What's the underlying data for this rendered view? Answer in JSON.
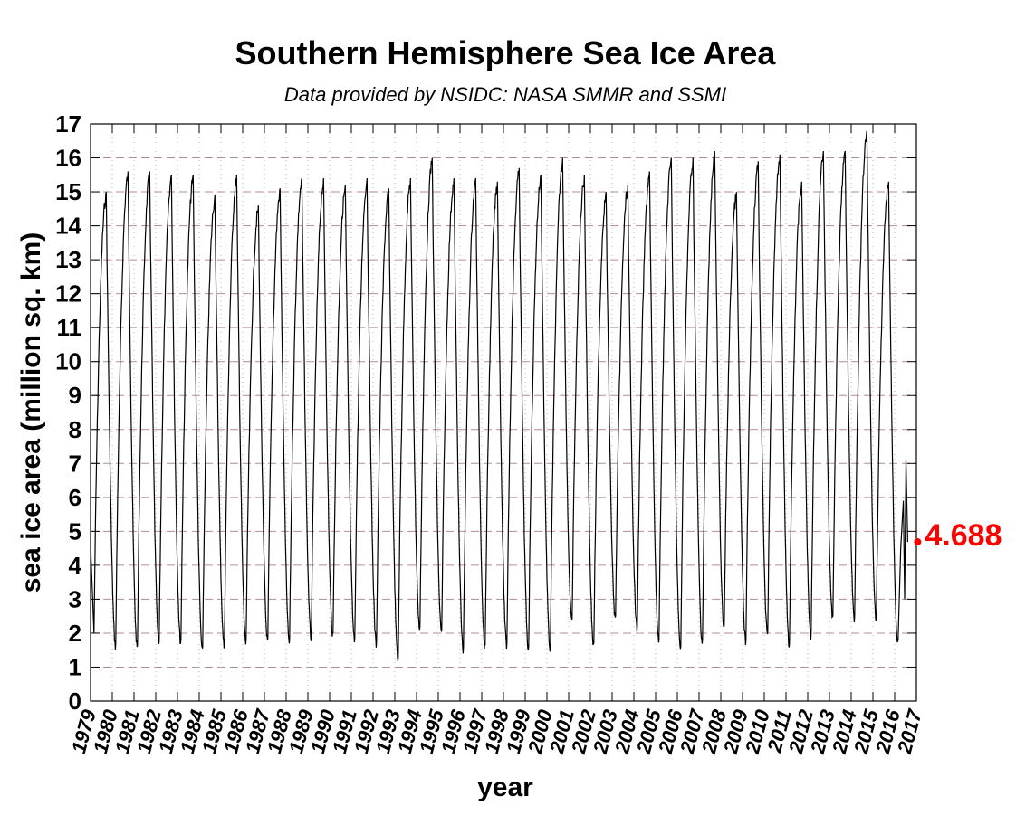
{
  "chart_data": {
    "type": "line",
    "title": "Southern Hemisphere Sea Ice Area",
    "subtitle": "Data provided by NSIDC: NASA SMMR and SSMI",
    "xlabel": "year",
    "ylabel": "sea ice area (million sq. km)",
    "xlim": [
      1979,
      2017
    ],
    "ylim": [
      0,
      17
    ],
    "x_ticks": [
      "1979",
      "1980",
      "1981",
      "1982",
      "1983",
      "1984",
      "1985",
      "1986",
      "1987",
      "1988",
      "1989",
      "1990",
      "1991",
      "1992",
      "1993",
      "1994",
      "1995",
      "1996",
      "1997",
      "1998",
      "1999",
      "2000",
      "2001",
      "2002",
      "2003",
      "2004",
      "2005",
      "2006",
      "2007",
      "2008",
      "2009",
      "2010",
      "2011",
      "2012",
      "2013",
      "2014",
      "2015",
      "2016",
      "2017"
    ],
    "y_ticks": [
      "0",
      "1",
      "2",
      "3",
      "4",
      "5",
      "6",
      "7",
      "8",
      "9",
      "10",
      "11",
      "12",
      "13",
      "14",
      "15",
      "16",
      "17"
    ],
    "grid": true,
    "series": [
      {
        "color": "#000000",
        "annual_minimum": [
          2.0,
          1.7,
          1.65,
          1.75,
          1.8,
          1.55,
          1.7,
          1.8,
          1.85,
          1.8,
          1.95,
          2.0,
          1.85,
          1.75,
          1.3,
          2.2,
          2.1,
          1.6,
          1.65,
          1.7,
          1.6,
          1.6,
          2.4,
          1.7,
          2.5,
          2.2,
          1.8,
          1.6,
          1.8,
          2.2,
          1.8,
          2.0,
          1.7,
          2.0,
          2.5,
          2.5,
          2.5,
          1.8
        ],
        "annual_maximum": [
          15.0,
          15.6,
          15.6,
          15.5,
          15.5,
          14.9,
          15.5,
          14.6,
          15.1,
          15.4,
          15.4,
          15.2,
          15.4,
          15.1,
          15.4,
          16.0,
          15.4,
          15.4,
          15.3,
          15.7,
          15.5,
          16.0,
          15.5,
          15.0,
          15.2,
          15.6,
          16.0,
          16.0,
          16.2,
          15.0,
          15.9,
          16.1,
          15.3,
          16.2,
          16.2,
          16.8,
          15.3
        ]
      }
    ],
    "latest_value": 4.688,
    "latest_color": "#ff0000"
  }
}
